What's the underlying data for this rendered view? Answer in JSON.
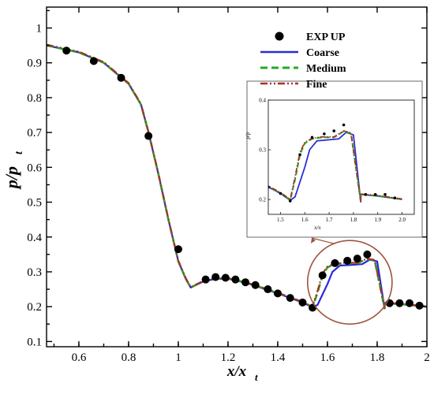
{
  "chart_data": {
    "type": "line",
    "xlabel": "x/x",
    "xlabel_sub": "t",
    "ylabel": "p/p",
    "ylabel_sub": "t",
    "xlim": [
      0.47,
      2.0
    ],
    "ylim": [
      0.085,
      1.06
    ],
    "xticks": [
      0.6,
      0.8,
      1.0,
      1.2,
      1.4,
      1.6,
      1.8,
      2.0
    ],
    "xtick_labels": [
      "0.6",
      "0.8",
      "1",
      "1.2",
      "1.4",
      "1.6",
      "1.8",
      "2"
    ],
    "yticks": [
      0.1,
      0.2,
      0.3,
      0.4,
      0.5,
      0.6,
      0.7,
      0.8,
      0.9,
      1.0
    ],
    "ytick_labels": [
      "0.1",
      "0.2",
      "0.3",
      "0.4",
      "0.5",
      "0.6",
      "0.7",
      "0.8",
      "0.9",
      "1"
    ],
    "legend": {
      "position": "top-right",
      "entries": [
        "EXP UP",
        "Coarse",
        "Medium",
        "Fine"
      ]
    },
    "series": [
      {
        "name": "EXP UP",
        "style": "marker",
        "color": "#000000",
        "x": [
          0.55,
          0.66,
          0.77,
          0.88,
          1.0,
          1.11,
          1.15,
          1.19,
          1.23,
          1.27,
          1.31,
          1.36,
          1.4,
          1.45,
          1.5,
          1.54,
          1.58,
          1.63,
          1.68,
          1.72,
          1.76,
          1.85,
          1.89,
          1.93,
          1.97
        ],
        "y": [
          0.935,
          0.905,
          0.857,
          0.69,
          0.365,
          0.278,
          0.285,
          0.283,
          0.278,
          0.27,
          0.262,
          0.25,
          0.238,
          0.225,
          0.212,
          0.197,
          0.29,
          0.325,
          0.332,
          0.338,
          0.35,
          0.21,
          0.21,
          0.21,
          0.203
        ]
      },
      {
        "name": "Coarse",
        "style": "solid",
        "color": "#2a2ad8",
        "x": [
          0.47,
          0.6,
          0.7,
          0.8,
          0.85,
          0.88,
          0.92,
          0.96,
          1.0,
          1.03,
          1.05,
          1.1,
          1.15,
          1.2,
          1.25,
          1.3,
          1.35,
          1.4,
          1.45,
          1.5,
          1.54,
          1.56,
          1.6,
          1.62,
          1.65,
          1.7,
          1.74,
          1.77,
          1.8,
          1.83,
          1.83,
          1.9,
          2.0
        ],
        "y": [
          0.95,
          0.93,
          0.9,
          0.84,
          0.78,
          0.7,
          0.58,
          0.45,
          0.33,
          0.28,
          0.255,
          0.272,
          0.28,
          0.28,
          0.272,
          0.262,
          0.25,
          0.238,
          0.225,
          0.212,
          0.198,
          0.205,
          0.265,
          0.3,
          0.318,
          0.32,
          0.322,
          0.335,
          0.33,
          0.195,
          0.21,
          0.207,
          0.2
        ]
      },
      {
        "name": "Medium",
        "style": "dashed",
        "color": "#22aa22",
        "x": [
          0.47,
          0.6,
          0.7,
          0.8,
          0.85,
          0.88,
          0.92,
          0.96,
          1.0,
          1.03,
          1.05,
          1.1,
          1.15,
          1.2,
          1.25,
          1.3,
          1.35,
          1.4,
          1.45,
          1.5,
          1.54,
          1.56,
          1.58,
          1.6,
          1.63,
          1.67,
          1.72,
          1.76,
          1.79,
          1.83,
          1.83,
          1.9,
          2.0
        ],
        "y": [
          0.95,
          0.93,
          0.9,
          0.84,
          0.78,
          0.7,
          0.58,
          0.45,
          0.33,
          0.28,
          0.255,
          0.273,
          0.281,
          0.281,
          0.273,
          0.263,
          0.251,
          0.239,
          0.226,
          0.213,
          0.199,
          0.24,
          0.29,
          0.313,
          0.322,
          0.325,
          0.325,
          0.337,
          0.333,
          0.195,
          0.21,
          0.207,
          0.2
        ]
      },
      {
        "name": "Fine",
        "style": "dashdotdot",
        "color": "#a83222",
        "x": [
          0.47,
          0.6,
          0.7,
          0.8,
          0.85,
          0.88,
          0.92,
          0.96,
          1.0,
          1.03,
          1.05,
          1.1,
          1.15,
          1.2,
          1.25,
          1.3,
          1.35,
          1.4,
          1.45,
          1.5,
          1.54,
          1.56,
          1.58,
          1.6,
          1.63,
          1.67,
          1.72,
          1.76,
          1.79,
          1.83,
          1.83,
          1.9,
          2.0
        ],
        "y": [
          0.952,
          0.932,
          0.902,
          0.842,
          0.782,
          0.702,
          0.582,
          0.452,
          0.332,
          0.282,
          0.256,
          0.274,
          0.282,
          0.282,
          0.274,
          0.264,
          0.252,
          0.24,
          0.227,
          0.214,
          0.2,
          0.245,
          0.295,
          0.315,
          0.323,
          0.326,
          0.326,
          0.338,
          0.334,
          0.196,
          0.211,
          0.208,
          0.201
        ]
      }
    ],
    "annotations": [
      {
        "type": "ellipse",
        "label": "zoom-region",
        "color": "#a0523d",
        "center_x": 1.69,
        "center_y": 0.27,
        "radius_x": 0.17,
        "radius_y": 0.12
      }
    ],
    "inset": {
      "xlim": [
        1.45,
        2.05
      ],
      "ylim": [
        0.17,
        0.4
      ],
      "xticks": [
        1.5,
        1.6,
        1.7,
        1.8,
        1.9,
        2.0
      ],
      "xtick_labels": [
        "1.5",
        "1.6",
        "1.7",
        "1.8",
        "1.9",
        "2.0"
      ],
      "yticks": [
        0.2,
        0.3,
        0.4
      ],
      "ytick_labels": [
        "0.2",
        "0.3",
        "0.4"
      ],
      "xlabel": "x/x",
      "ylabel": "p/p"
    }
  }
}
